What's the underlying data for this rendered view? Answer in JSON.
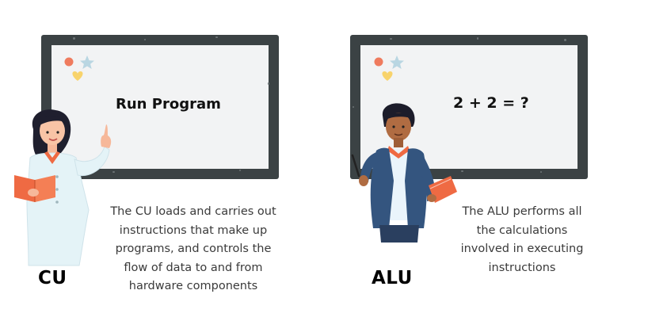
{
  "cu": {
    "board_text": "Run Program",
    "caption_lines": [
      "The CU loads and carries out",
      "instructions that make up",
      "programs, and controls the",
      "flow of data to and from",
      "hardware components"
    ],
    "label": "CU"
  },
  "alu": {
    "board_text": "2 + 2 = ?",
    "caption_lines": [
      "The ALU performs all",
      "the calculations",
      "involved in executing",
      "instructions"
    ],
    "label": "ALU"
  },
  "colors": {
    "board_frame": "#3b4244",
    "board_surface": "#f2f3f4",
    "accent_orange": "#ef6a43",
    "lab_coat": "#e4f3f7",
    "jacket_blue": "#34557f"
  }
}
